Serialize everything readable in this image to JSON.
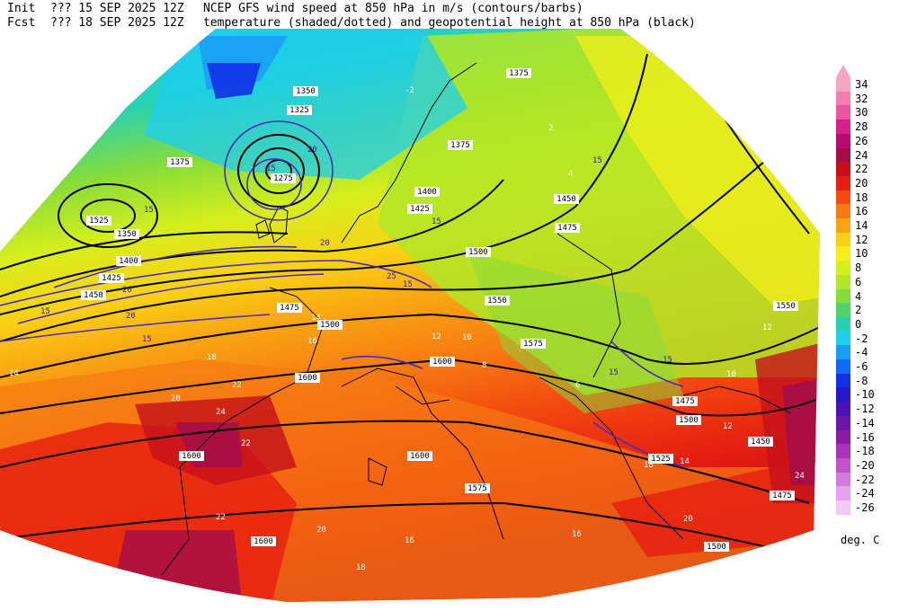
{
  "header": {
    "init_label": "Init",
    "init_time": "??? 15 SEP 2025 12Z",
    "fcst_label": "Fcst",
    "fcst_time": "??? 18 SEP 2025 12Z",
    "title_line1": "NCEP GFS wind speed at 850 hPa in m/s (contours/barbs)",
    "title_line2": "temperature (shaded/dotted) and geopotential height at 850 hPa (black)"
  },
  "colorbar": {
    "unit": "deg. C",
    "levels": [
      {
        "value": "34",
        "color": "#f7a6c0"
      },
      {
        "value": "32",
        "color": "#f27fb0"
      },
      {
        "value": "30",
        "color": "#ec55a0"
      },
      {
        "value": "28",
        "color": "#d6208c"
      },
      {
        "value": "26",
        "color": "#b80b6f"
      },
      {
        "value": "24",
        "color": "#a30d4a"
      },
      {
        "value": "22",
        "color": "#c4101a"
      },
      {
        "value": "20",
        "color": "#e61e10"
      },
      {
        "value": "18",
        "color": "#f34a10"
      },
      {
        "value": "16",
        "color": "#f77a12"
      },
      {
        "value": "14",
        "color": "#f9a512"
      },
      {
        "value": "12",
        "color": "#fad014"
      },
      {
        "value": "10",
        "color": "#f8ef18"
      },
      {
        "value": "8",
        "color": "#d6ef1c"
      },
      {
        "value": "6",
        "color": "#b3e626"
      },
      {
        "value": "4",
        "color": "#86dc3a"
      },
      {
        "value": "2",
        "color": "#52d466"
      },
      {
        "value": "0",
        "color": "#27d2b4"
      },
      {
        "value": "-2",
        "color": "#1ecdf0"
      },
      {
        "value": "-4",
        "color": "#199ef5"
      },
      {
        "value": "-6",
        "color": "#1468f5"
      },
      {
        "value": "-8",
        "color": "#1030e6"
      },
      {
        "value": "-10",
        "color": "#2618c8"
      },
      {
        "value": "-12",
        "color": "#4a12b4"
      },
      {
        "value": "-14",
        "color": "#6e14a6"
      },
      {
        "value": "-16",
        "color": "#8c1aa3"
      },
      {
        "value": "-18",
        "color": "#a832b8"
      },
      {
        "value": "-20",
        "color": "#c052cc"
      },
      {
        "value": "-22",
        "color": "#d47ae0"
      },
      {
        "value": "-24",
        "color": "#e6a2ee"
      },
      {
        "value": "-26",
        "color": "#f3c8f5"
      }
    ]
  },
  "map": {
    "height_labels": [
      "1350",
      "1375",
      "1400",
      "1425",
      "1450",
      "1475",
      "1500",
      "1525",
      "1550",
      "1575",
      "1600",
      "1350",
      "1375",
      "1400",
      "1425",
      "1450",
      "1475",
      "1500",
      "1600",
      "1600",
      "1600",
      "1450",
      "1475",
      "1500",
      "1575",
      "1550",
      "1600",
      "1275",
      "1325",
      "1375",
      "1475",
      "1525",
      "1500"
    ],
    "wind_labels": [
      "15",
      "20",
      "15",
      "20",
      "15",
      "20",
      "15",
      "25",
      "15",
      "15",
      "20",
      "15",
      "15",
      "15"
    ],
    "temp_labels": [
      "14",
      "12",
      "10",
      "8",
      "6",
      "4",
      "2",
      "-2",
      "16",
      "18",
      "20",
      "22",
      "24",
      "22",
      "20",
      "18",
      "16",
      "14",
      "12",
      "10",
      "12",
      "14",
      "16",
      "18",
      "20",
      "22",
      "24"
    ]
  }
}
